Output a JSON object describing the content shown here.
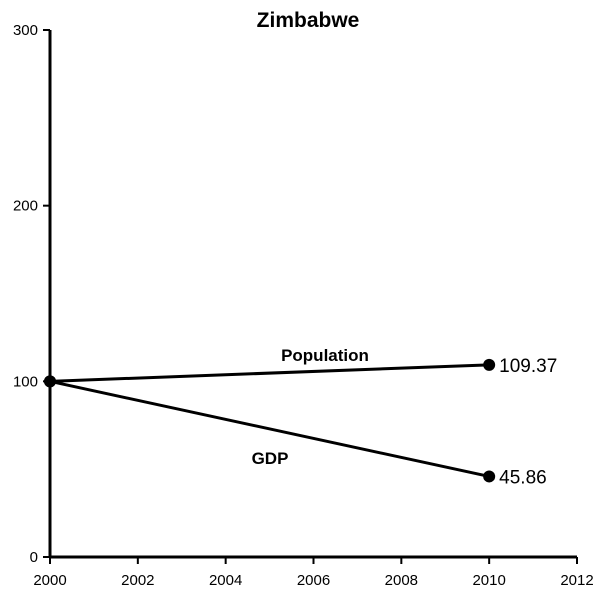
{
  "chart_data": {
    "type": "line",
    "title": "Zimbabwe",
    "xlabel": "",
    "ylabel": "",
    "xlim": [
      2000,
      2012
    ],
    "ylim": [
      0,
      300
    ],
    "x_ticks": [
      2000,
      2002,
      2004,
      2006,
      2008,
      2010,
      2012
    ],
    "y_ticks": [
      0,
      100,
      200,
      300
    ],
    "grid": false,
    "legend": "none",
    "series": [
      {
        "name": "Population",
        "points": [
          {
            "x": 2000,
            "y": 100
          },
          {
            "x": 2010,
            "y": 109.37
          }
        ],
        "end_label": "109.37"
      },
      {
        "name": "GDP",
        "points": [
          {
            "x": 2000,
            "y": 100
          },
          {
            "x": 2010,
            "y": 45.86
          }
        ],
        "end_label": "45.86"
      }
    ],
    "colors": {
      "line": "#000000",
      "axis": "#000000"
    }
  }
}
